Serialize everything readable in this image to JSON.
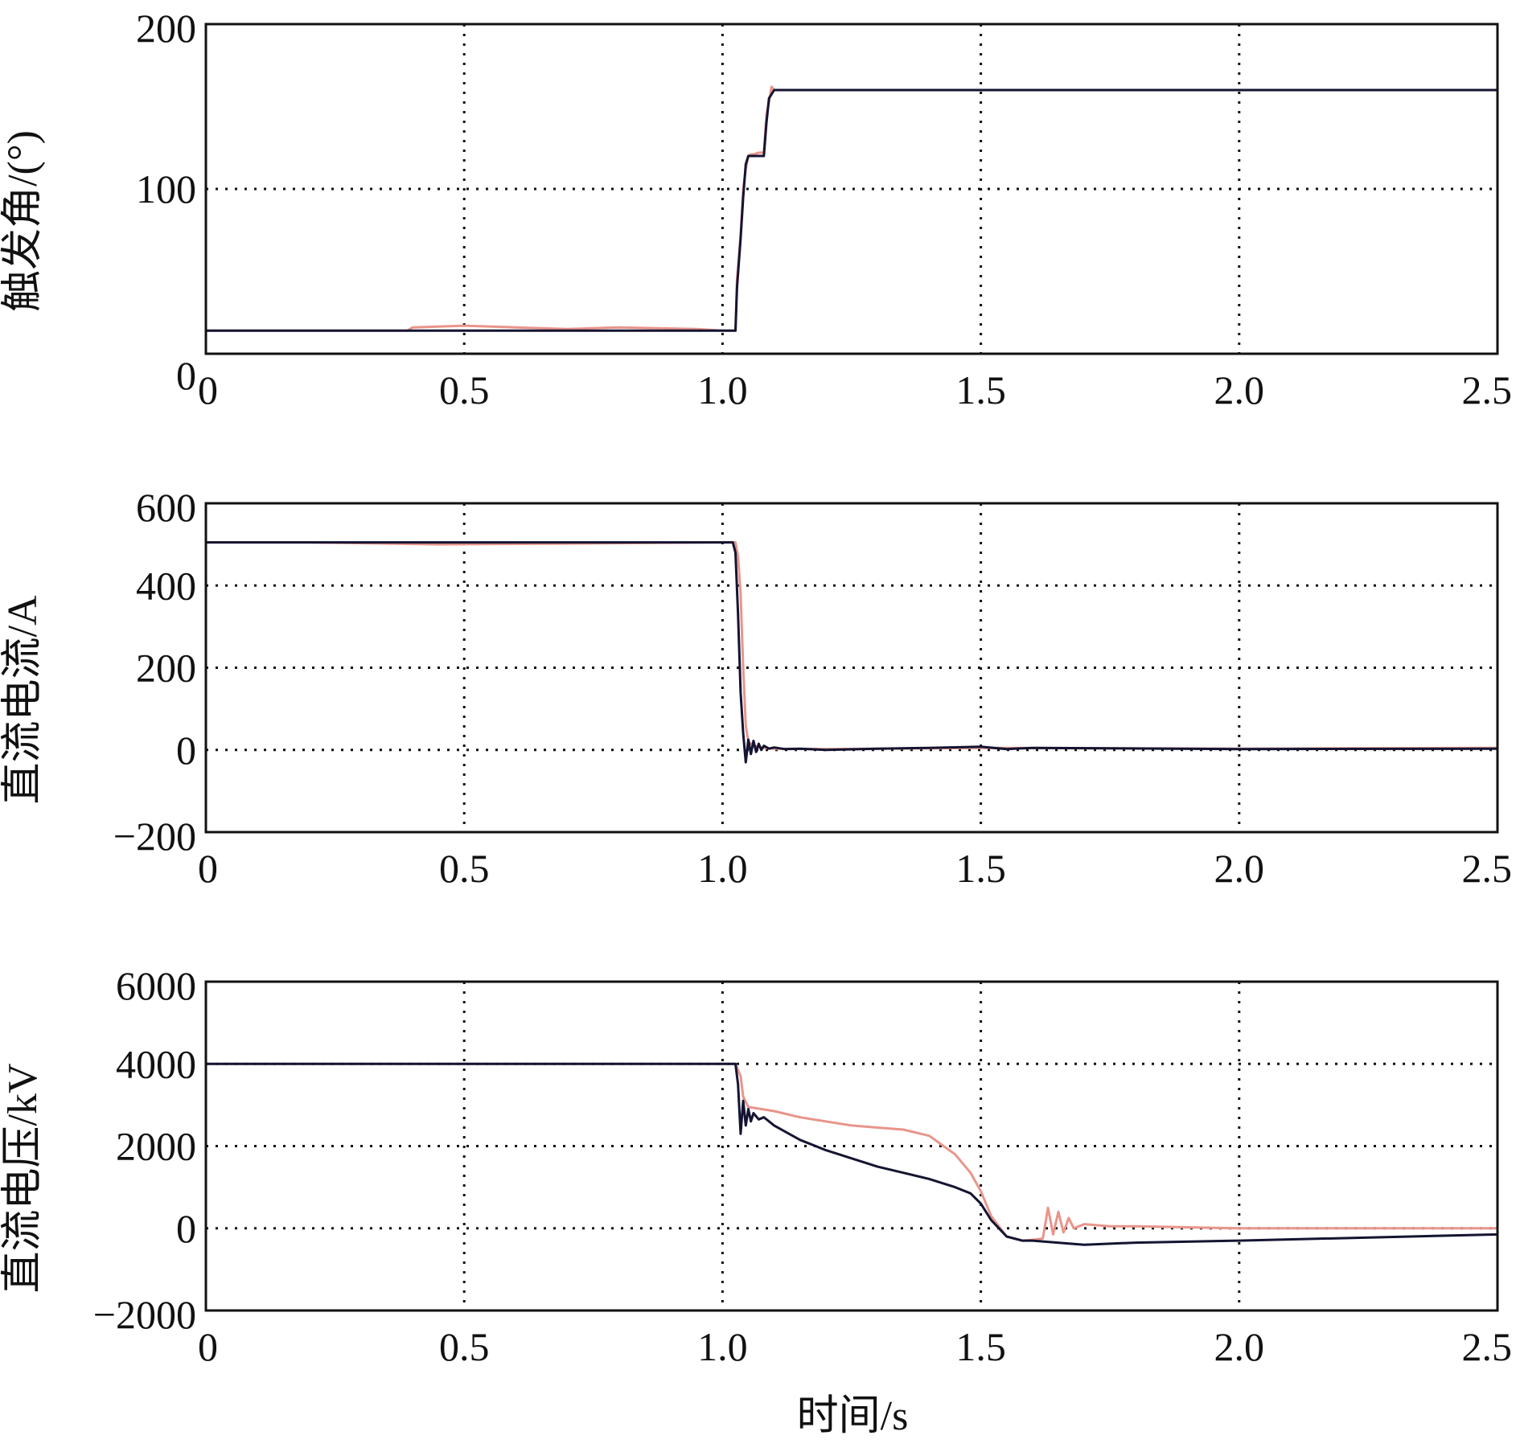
{
  "chart_data": [
    {
      "type": "line",
      "ylabel": "触发角/(°)",
      "xlabel": "",
      "xlim": [
        0,
        2.5
      ],
      "ylim": [
        0,
        200
      ],
      "xticks": [
        "0",
        "0.5",
        "1.0",
        "1.5",
        "2.0",
        "2.5"
      ],
      "yticks": [
        "0",
        "100",
        "200"
      ],
      "grid": true,
      "series": [
        {
          "color": "#e8958b",
          "x": [
            0,
            0.39,
            0.4,
            0.5,
            0.6,
            0.7,
            0.8,
            0.95,
            1.0,
            1.025,
            1.028,
            1.035,
            1.04,
            1.045,
            1.05,
            1.055,
            1.06,
            1.07,
            1.08,
            1.085,
            1.09,
            1.095,
            1.1,
            2.5
          ],
          "y": [
            14,
            14,
            16,
            17,
            16,
            15,
            16,
            15,
            14,
            14,
            45,
            72,
            100,
            112,
            120,
            121,
            121,
            122,
            122,
            145,
            153,
            162,
            160,
            160
          ]
        },
        {
          "color": "#141432",
          "x": [
            0,
            1.0,
            1.025,
            1.028,
            1.035,
            1.04,
            1.045,
            1.05,
            1.06,
            1.08,
            1.085,
            1.09,
            1.1,
            2.5
          ],
          "y": [
            14,
            14,
            14,
            40,
            70,
            95,
            115,
            120,
            120,
            120,
            140,
            155,
            160,
            160
          ]
        }
      ]
    },
    {
      "type": "line",
      "ylabel": "直流电流/A",
      "xlabel": "",
      "xlim": [
        0,
        2.5
      ],
      "ylim": [
        -200,
        600
      ],
      "xticks": [
        "0",
        "0.5",
        "1.0",
        "1.5",
        "2.0",
        "2.5"
      ],
      "yticks": [
        "−200",
        "0",
        "200",
        "400",
        "600"
      ],
      "grid": true,
      "series": [
        {
          "color": "#e8958b",
          "x": [
            0,
            0.2,
            0.45,
            0.7,
            1.0,
            1.025,
            1.03,
            1.035,
            1.04,
            1.045,
            1.05,
            1.06,
            1.08,
            1.1,
            1.2,
            1.5,
            2.0,
            2.5
          ],
          "y": [
            505,
            505,
            500,
            502,
            505,
            505,
            470,
            380,
            200,
            60,
            20,
            10,
            5,
            3,
            2,
            5,
            3,
            5
          ]
        },
        {
          "color": "#141432",
          "x": [
            0,
            1.0,
            1.02,
            1.025,
            1.03,
            1.035,
            1.04,
            1.045,
            1.05,
            1.055,
            1.06,
            1.065,
            1.07,
            1.075,
            1.08,
            1.09,
            1.1,
            1.12,
            1.15,
            1.2,
            1.3,
            1.4,
            1.5,
            1.55,
            1.6,
            2.0,
            2.5
          ],
          "y": [
            505,
            505,
            505,
            480,
            330,
            140,
            40,
            -30,
            25,
            -10,
            22,
            -5,
            15,
            0,
            10,
            3,
            6,
            2,
            3,
            0,
            3,
            5,
            8,
            2,
            5,
            2,
            3
          ]
        }
      ]
    },
    {
      "type": "line",
      "ylabel": "直流电压/kV",
      "xlabel": "时间/s",
      "xlim": [
        0,
        2.5
      ],
      "ylim": [
        -2000,
        6000
      ],
      "xticks": [
        "0",
        "0.5",
        "1.0",
        "1.5",
        "2.0",
        "2.5"
      ],
      "yticks": [
        "−2000",
        "0",
        "2000",
        "4000",
        "6000"
      ],
      "grid": true,
      "series": [
        {
          "color": "#e8958b",
          "x": [
            0,
            0.5,
            1.0,
            1.025,
            1.035,
            1.04,
            1.05,
            1.1,
            1.15,
            1.2,
            1.25,
            1.3,
            1.35,
            1.4,
            1.45,
            1.48,
            1.5,
            1.52,
            1.55,
            1.58,
            1.6,
            1.62,
            1.63,
            1.64,
            1.65,
            1.66,
            1.67,
            1.68,
            1.7,
            1.75,
            1.8,
            2.0,
            2.5
          ],
          "y": [
            4000,
            4000,
            4000,
            4000,
            3700,
            3200,
            2950,
            2850,
            2700,
            2600,
            2500,
            2450,
            2400,
            2250,
            1800,
            1350,
            900,
            300,
            -200,
            -300,
            -280,
            -250,
            500,
            -150,
            400,
            -100,
            250,
            0,
            100,
            50,
            50,
            0,
            0
          ]
        },
        {
          "color": "#141432",
          "x": [
            0,
            0.5,
            1.0,
            1.025,
            1.03,
            1.035,
            1.04,
            1.045,
            1.05,
            1.055,
            1.06,
            1.07,
            1.08,
            1.1,
            1.15,
            1.2,
            1.25,
            1.3,
            1.35,
            1.4,
            1.45,
            1.48,
            1.5,
            1.52,
            1.55,
            1.58,
            1.6,
            1.7,
            1.8,
            2.0,
            2.5
          ],
          "y": [
            4000,
            4000,
            4000,
            4000,
            3500,
            2300,
            3100,
            2500,
            2900,
            2600,
            2800,
            2650,
            2700,
            2500,
            2150,
            1900,
            1700,
            1500,
            1350,
            1200,
            1000,
            850,
            600,
            200,
            -200,
            -300,
            -300,
            -400,
            -350,
            -300,
            -150
          ]
        }
      ]
    }
  ]
}
